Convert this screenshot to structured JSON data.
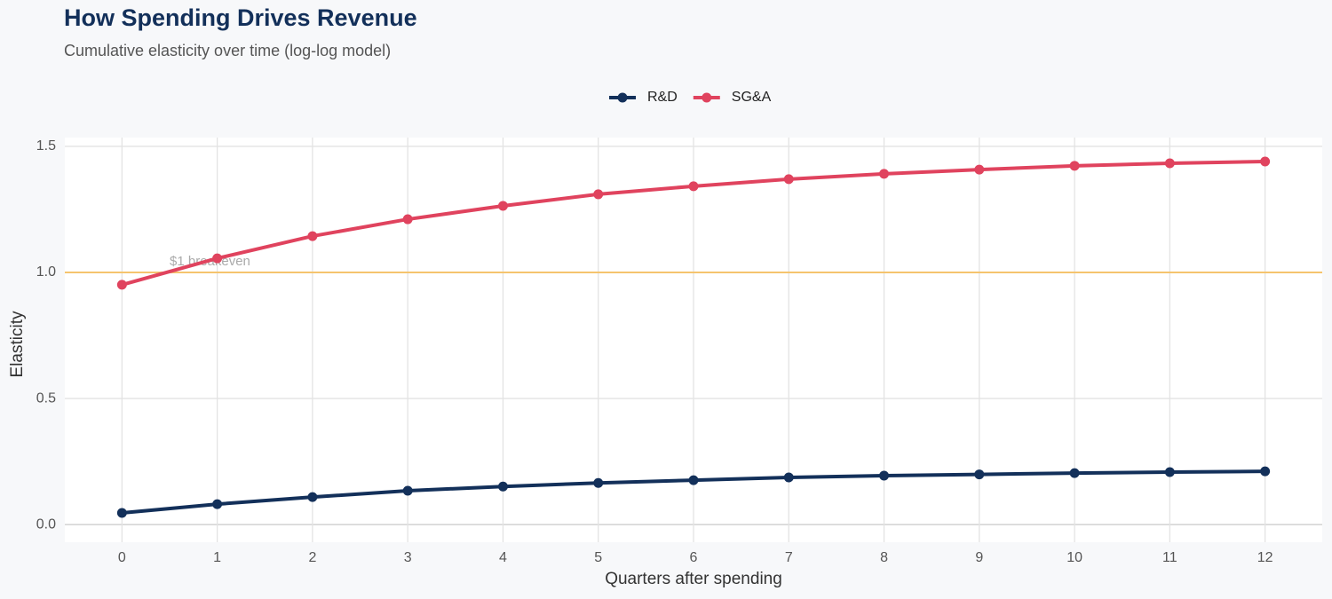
{
  "chart_data": {
    "type": "line",
    "title": "How Spending Drives Revenue",
    "subtitle": "Cumulative elasticity over time (log-log model)",
    "x_label": "Quarters after spending",
    "y_label": "Elasticity",
    "x": [
      0,
      1,
      2,
      3,
      4,
      5,
      6,
      7,
      8,
      9,
      10,
      11,
      12
    ],
    "series": [
      {
        "name": "R&D",
        "color": "#13305a",
        "values": [
          0.046,
          0.081,
          0.109,
          0.134,
          0.151,
          0.165,
          0.176,
          0.187,
          0.194,
          0.199,
          0.204,
          0.208,
          0.211
        ]
      },
      {
        "name": "SG&A",
        "color": "#e0435e",
        "values": [
          0.951,
          1.056,
          1.144,
          1.211,
          1.264,
          1.31,
          1.342,
          1.37,
          1.391,
          1.408,
          1.423,
          1.433,
          1.44
        ]
      }
    ],
    "reference_line": {
      "value": 1,
      "label": "$1 breakeven",
      "color": "#f5c46e"
    },
    "xlim": [
      -0.6,
      12.6
    ],
    "ylim": [
      -0.07,
      1.535
    ],
    "xticks": [
      0,
      1,
      2,
      3,
      4,
      5,
      6,
      7,
      8,
      9,
      10,
      11,
      12
    ],
    "yticks": [
      {
        "value": 0,
        "label": "0.0"
      },
      0.5,
      {
        "value": 1,
        "label": "1.0"
      },
      1.5
    ],
    "grid": true,
    "legend": "top"
  }
}
